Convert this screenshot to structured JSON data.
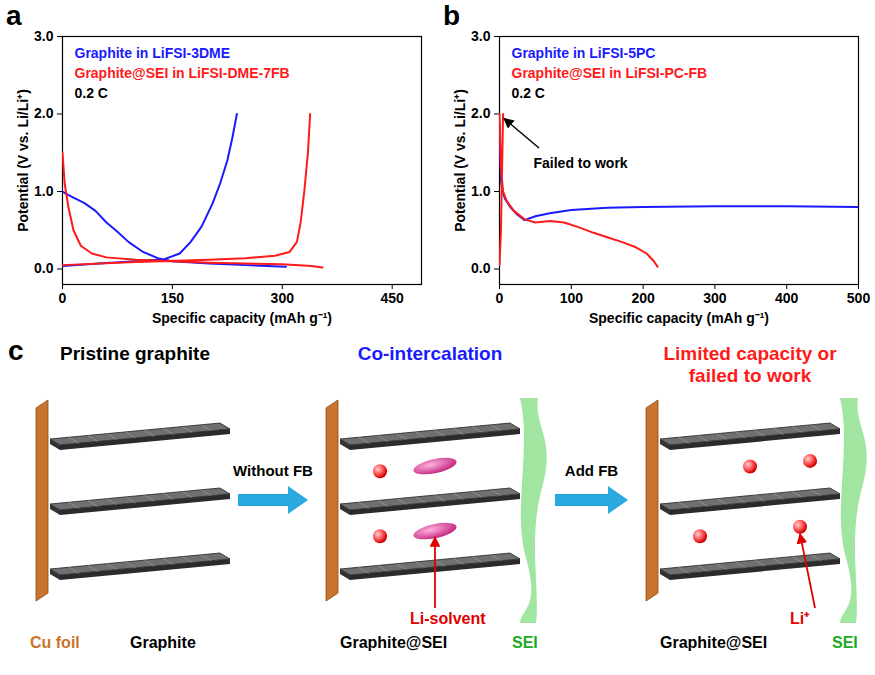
{
  "chart_data": [
    {
      "panel": "a",
      "type": "line",
      "x_label": "Specific capacity (mAh g⁻¹)",
      "y_label": "Potential (V vs. Li/Li⁺)",
      "rate": "0.2 C",
      "xlim": [
        0,
        490
      ],
      "xticks": [
        0,
        150,
        300,
        450
      ],
      "ylim": [
        -0.2,
        3
      ],
      "yticks": [
        0,
        1,
        2,
        3
      ],
      "legend": "upper left",
      "series": [
        {
          "name": "Graphite in LiFSI-3DME",
          "color": "#1a1aff",
          "x": [
            0,
            5,
            15,
            30,
            45,
            60,
            75,
            90,
            110,
            130,
            150,
            200,
            250,
            305,
            null,
            0,
            50,
            100,
            140,
            160,
            175,
            190,
            205,
            215,
            225,
            232,
            238
          ],
          "values": [
            1.0,
            0.97,
            0.92,
            0.85,
            0.75,
            0.6,
            0.48,
            0.35,
            0.22,
            0.14,
            0.1,
            0.07,
            0.05,
            0.03,
            null,
            0.04,
            0.07,
            0.1,
            0.13,
            0.2,
            0.35,
            0.55,
            0.85,
            1.1,
            1.4,
            1.7,
            2.0
          ]
        },
        {
          "name": "Graphite@SEI in LiFSI-DME-7FB",
          "color": "#ff1a1a",
          "x": [
            0,
            3,
            8,
            15,
            25,
            40,
            60,
            100,
            150,
            200,
            250,
            300,
            340,
            355,
            null,
            0,
            100,
            200,
            250,
            290,
            310,
            320,
            325,
            330,
            335,
            338
          ],
          "values": [
            1.5,
            1.1,
            0.8,
            0.5,
            0.3,
            0.2,
            0.15,
            0.12,
            0.1,
            0.08,
            0.07,
            0.06,
            0.04,
            0.02,
            null,
            0.05,
            0.09,
            0.12,
            0.14,
            0.17,
            0.22,
            0.35,
            0.6,
            1.0,
            1.5,
            2.0
          ]
        }
      ]
    },
    {
      "panel": "b",
      "type": "line",
      "x_label": "Specific capacity (mAh g⁻¹)",
      "y_label": "Potential (V vs. Li/Li⁺)",
      "rate": "0.2 C",
      "annotation": "Failed to work",
      "xlim": [
        0,
        500
      ],
      "xticks": [
        0,
        100,
        200,
        300,
        400,
        500
      ],
      "ylim": [
        -0.2,
        3
      ],
      "yticks": [
        0,
        1,
        2,
        3
      ],
      "legend": "upper left",
      "series": [
        {
          "name": "Graphite in LiFSI-5PC",
          "color": "#1a1aff",
          "x": [
            0,
            1,
            2,
            4,
            8,
            15,
            25,
            35,
            50,
            70,
            100,
            150,
            200,
            300,
            400,
            500
          ],
          "values": [
            1.9,
            1.5,
            1.15,
            1.0,
            0.9,
            0.8,
            0.7,
            0.63,
            0.68,
            0.72,
            0.76,
            0.79,
            0.8,
            0.81,
            0.81,
            0.8
          ]
        },
        {
          "name": "Graphite@SEI in LiFSI-PC-FB",
          "color": "#ff1a1a",
          "x": [
            0,
            2,
            5,
            10,
            20,
            35,
            50,
            70,
            90,
            110,
            130,
            150,
            170,
            190,
            205,
            215,
            220,
            null,
            0,
            2,
            3,
            4,
            5
          ],
          "values": [
            2.0,
            1.3,
            1.0,
            0.88,
            0.75,
            0.64,
            0.6,
            0.62,
            0.6,
            0.54,
            0.47,
            0.41,
            0.35,
            0.28,
            0.2,
            0.1,
            0.03,
            null,
            0.05,
            0.5,
            1.0,
            1.5,
            2.0
          ]
        }
      ]
    }
  ],
  "diagram": {
    "panel": "c",
    "steps": [
      {
        "title": "Pristine graphite",
        "labels": [
          "Cu foil",
          "Graphite"
        ]
      },
      {
        "title": "Co-intercalation",
        "labels": [
          "Graphite@SEI",
          "SEI"
        ],
        "callout": "Li-solvent"
      },
      {
        "title": "Limited capacity or failed to work",
        "labels": [
          "Graphite@SEI",
          "SEI"
        ],
        "callout": "Li⁺"
      }
    ],
    "arrows": [
      "Without FB",
      "Add FB"
    ]
  }
}
